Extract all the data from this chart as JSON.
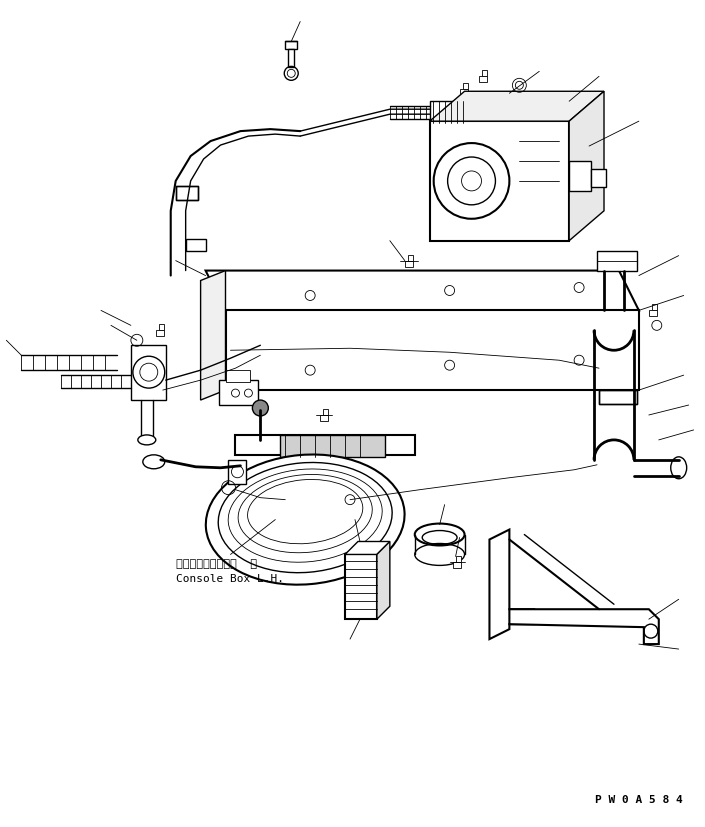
{
  "bg_color": "#ffffff",
  "line_color": "#000000",
  "lw_thin": 0.6,
  "lw_med": 1.0,
  "lw_thick": 1.5,
  "lw_pipe": 2.0,
  "label_japanese": "コンソールボックス  左",
  "label_english": "Console Box L.H.",
  "part_number": "P W 0 A 5 8 4",
  "fig_width": 7.05,
  "fig_height": 8.27,
  "dpi": 100
}
